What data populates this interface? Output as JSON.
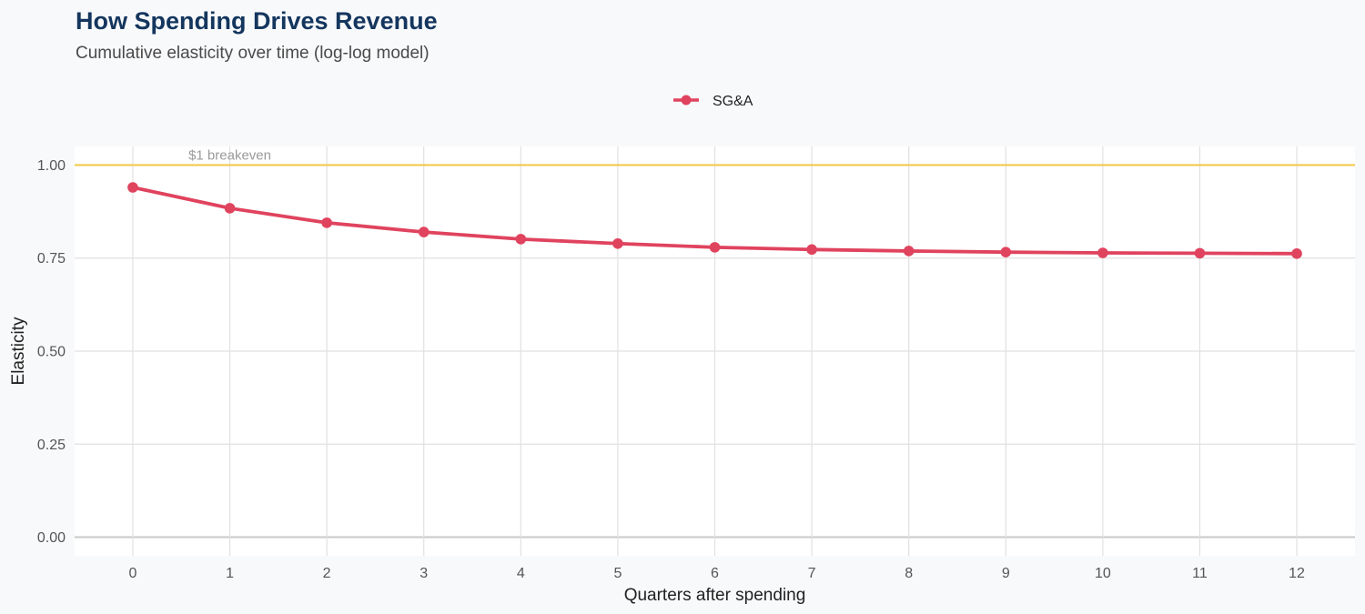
{
  "title": "How Spending Drives Revenue",
  "subtitle": "Cumulative elasticity over time (log-log model)",
  "colors": {
    "series": "#e0435e",
    "reference_line": "#f1c94e",
    "grid": "#e1e1e1",
    "zero_line": "#c8c8c8",
    "panel": "#ffffff",
    "background": "#f8f9fb"
  },
  "chart_data": {
    "type": "line",
    "title": "How Spending Drives Revenue",
    "subtitle": "Cumulative elasticity over time (log-log model)",
    "xlabel": "Quarters after spending",
    "ylabel": "Elasticity",
    "x": [
      0,
      1,
      2,
      3,
      4,
      5,
      6,
      7,
      8,
      9,
      10,
      11,
      12
    ],
    "xlim": [
      -0.6,
      12.6
    ],
    "ylim": [
      -0.05,
      1.05
    ],
    "xticks": [
      "0",
      "1",
      "2",
      "3",
      "4",
      "5",
      "6",
      "7",
      "8",
      "9",
      "10",
      "11",
      "12"
    ],
    "yticks": [
      {
        "value": 0.0,
        "label": "0.00"
      },
      {
        "value": 0.25,
        "label": "0.25"
      },
      {
        "value": 0.5,
        "label": "0.50"
      },
      {
        "value": 0.75,
        "label": "0.75"
      },
      {
        "value": 1.0,
        "label": "1.00"
      }
    ],
    "grid": true,
    "legend_position": "top-center",
    "series": [
      {
        "name": "SG&A",
        "values": [
          0.94,
          0.884,
          0.845,
          0.82,
          0.801,
          0.789,
          0.779,
          0.773,
          0.769,
          0.766,
          0.764,
          0.763,
          0.762
        ]
      }
    ],
    "reference_line": {
      "y": 1.0,
      "label": "$1 breakeven",
      "label_x": 1
    }
  }
}
